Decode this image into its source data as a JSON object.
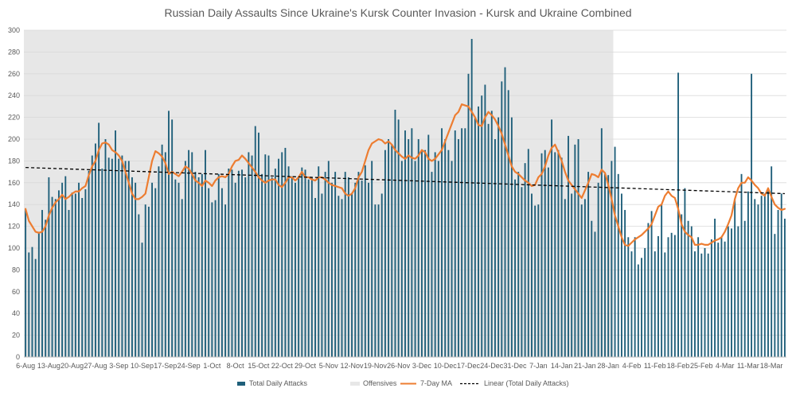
{
  "chart_data": {
    "type": "bar",
    "title": "Russian Daily Assaults Since Ukraine's Kursk Counter Invasion - Kursk and Ukraine Combined",
    "xlabel": "",
    "ylabel": "",
    "ylim": [
      0,
      300
    ],
    "yticks": [
      0,
      20,
      40,
      60,
      80,
      100,
      120,
      140,
      160,
      180,
      200,
      220,
      240,
      260,
      280,
      300
    ],
    "xtick_labels": [
      "6-Aug",
      "13-Aug",
      "20-Aug",
      "27-Aug",
      "3-Sep",
      "10-Sep",
      "17-Sep",
      "24-Sep",
      "1-Oct",
      "8-Oct",
      "15-Oct",
      "22-Oct",
      "29-Oct",
      "5-Nov",
      "12-Nov",
      "19-Nov",
      "26-Nov",
      "3-Dec",
      "10-Dec",
      "17-Dec",
      "24-Dec",
      "31-Dec",
      "7-Jan",
      "14-Jan",
      "21-Jan",
      "28-Jan",
      "4-Feb",
      "11-Feb",
      "18-Feb",
      "25-Feb",
      "4-Mar",
      "11-Mar",
      "18-Mar"
    ],
    "grid": "horizontal",
    "legend_position": "bottom",
    "shaded_region": {
      "name": "Offensives",
      "start_day": 0,
      "end_day": 176,
      "color": "#e7e7e7"
    },
    "series": [
      {
        "name": "Total Daily Attacks",
        "kind": "bar",
        "color": "#1f5f7a",
        "values": [
          136,
          96,
          101,
          90,
          115,
          135,
          126,
          165,
          147,
          145,
          153,
          160,
          166,
          135,
          151,
          150,
          160,
          146,
          154,
          171,
          185,
          196,
          215,
          173,
          200,
          183,
          182,
          208,
          182,
          185,
          180,
          180,
          165,
          160,
          131,
          105,
          140,
          138,
          160,
          155,
          175,
          195,
          188,
          226,
          218,
          163,
          160,
          145,
          180,
          190,
          188,
          170,
          165,
          168,
          190,
          155,
          142,
          144,
          168,
          155,
          140,
          173,
          172,
          160,
          171,
          172,
          165,
          188,
          185,
          212,
          206,
          168,
          186,
          185,
          165,
          173,
          182,
          188,
          192,
          175,
          166,
          160,
          166,
          174,
          172,
          163,
          165,
          146,
          175,
          150,
          170,
          180,
          160,
          170,
          148,
          145,
          170,
          165,
          150,
          160,
          170,
          162,
          176,
          160,
          180,
          140,
          140,
          150,
          190,
          200,
          195,
          227,
          218,
          180,
          208,
          200,
          210,
          180,
          200,
          190,
          190,
          204,
          170,
          188,
          180,
          210,
          200,
          190,
          180,
          208,
          200,
          210,
          210,
          260,
          292,
          220,
          230,
          240,
          250,
          214,
          226,
          200,
          220,
          253,
          266,
          245,
          220,
          163,
          170,
          156,
          178,
          191,
          150,
          139,
          140,
          187,
          190,
          174,
          218,
          188,
          190,
          183,
          145,
          203,
          150,
          195,
          200,
          140,
          145,
          170,
          125,
          115,
          160,
          210,
          168,
          167,
          180,
          193,
          168,
          150,
          135,
          110,
          97,
          110,
          85,
          91,
          100,
          123,
          134,
          97,
          111,
          140,
          96,
          110,
          114,
          112,
          261,
          131,
          155,
          125,
          120,
          97,
          110,
          95,
          100,
          95,
          108,
          127,
          105,
          110,
          106,
          120,
          118,
          145,
          120,
          168,
          125,
          152,
          260,
          145,
          140,
          148,
          150,
          155,
          175,
          113,
          135,
          150,
          127
        ]
      },
      {
        "name": "7-Day MA",
        "kind": "line",
        "color": "#ed7d31",
        "values": [
          136,
          125,
          120,
          115,
          114,
          115,
          120,
          130,
          137,
          142,
          145,
          149,
          145,
          147,
          150,
          152,
          152,
          155,
          157,
          167,
          175,
          180,
          190,
          196,
          197,
          195,
          190,
          188,
          185,
          180,
          170,
          160,
          150,
          145,
          145,
          147,
          150,
          165,
          180,
          189,
          187,
          184,
          178,
          168,
          170,
          168,
          166,
          170,
          175,
          173,
          168,
          162,
          160,
          157,
          162,
          160,
          157,
          162,
          165,
          166,
          165,
          168,
          175,
          180,
          181,
          185,
          182,
          178,
          174,
          170,
          165,
          162,
          160,
          162,
          163,
          163,
          158,
          156,
          160,
          165,
          165,
          162,
          165,
          170,
          165,
          165,
          163,
          162,
          165,
          165,
          163,
          160,
          158,
          157,
          156,
          155,
          150,
          148,
          150,
          155,
          165,
          170,
          180,
          190,
          196,
          198,
          200,
          199,
          196,
          198,
          195,
          190,
          187,
          184,
          182,
          185,
          183,
          182,
          185,
          190,
          188,
          182,
          180,
          182,
          186,
          190,
          198,
          206,
          214,
          222,
          225,
          232,
          231,
          230,
          225,
          220,
          213,
          212,
          220,
          225,
          222,
          218,
          212,
          205,
          195,
          185,
          175,
          170,
          168,
          165,
          162,
          160,
          157,
          158,
          165,
          168,
          175,
          185,
          192,
          195,
          188,
          180,
          170,
          162,
          158,
          154,
          150,
          146,
          153,
          160,
          168,
          167,
          165,
          172,
          169,
          158,
          145,
          130,
          120,
          110,
          103,
          102,
          105,
          108,
          110,
          112,
          115,
          118,
          122,
          130,
          138,
          140,
          148,
          152,
          148,
          146,
          136,
          122,
          115,
          112,
          110,
          103,
          103,
          104,
          103,
          103,
          105,
          107,
          108,
          110,
          115,
          122,
          130,
          145,
          155,
          160,
          160,
          165,
          162,
          158,
          155,
          150,
          148,
          155,
          147,
          140,
          137,
          135,
          136
        ]
      },
      {
        "name": "Linear (Total Daily Attacks)",
        "kind": "trendline",
        "color": "#000000",
        "start": 174,
        "end": 150
      }
    ]
  }
}
